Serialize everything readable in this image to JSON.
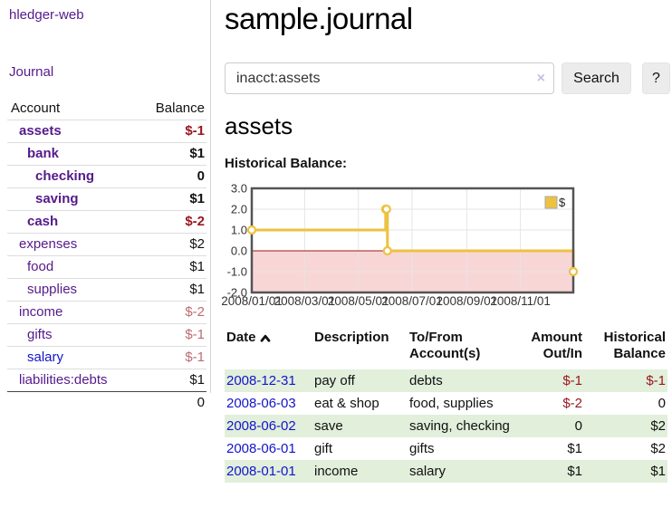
{
  "app": {
    "brand": "hledger-web",
    "nav_journal": "Journal"
  },
  "colors": {
    "link-purple": "#551a8b",
    "link-blue": "#1414cc",
    "neg-strong": "#9d1620",
    "neg-muted": "#bd6b74",
    "row-green": "#e1efdb"
  },
  "sidebar": {
    "header": {
      "account": "Account",
      "balance": "Balance"
    },
    "accounts": [
      {
        "name": "assets",
        "depth": 1,
        "bold": true,
        "balance": "$-1",
        "balance_style": "neg-strong",
        "link_style": "purple"
      },
      {
        "name": "bank",
        "depth": 2,
        "bold": true,
        "balance": "$1",
        "balance_style": "",
        "link_style": "purple"
      },
      {
        "name": "checking",
        "depth": 3,
        "bold": true,
        "balance": "0",
        "balance_style": "",
        "link_style": "purple"
      },
      {
        "name": "saving",
        "depth": 3,
        "bold": true,
        "balance": "$1",
        "balance_style": "",
        "link_style": "purple"
      },
      {
        "name": "cash",
        "depth": 2,
        "bold": true,
        "balance": "$-2",
        "balance_style": "neg-strong",
        "link_style": "purple"
      },
      {
        "name": "expenses",
        "depth": 1,
        "bold": false,
        "balance": "$2",
        "balance_style": "",
        "link_style": "purple"
      },
      {
        "name": "food",
        "depth": 2,
        "bold": false,
        "balance": "$1",
        "balance_style": "",
        "link_style": "purple"
      },
      {
        "name": "supplies",
        "depth": 2,
        "bold": false,
        "balance": "$1",
        "balance_style": "",
        "link_style": "purple"
      },
      {
        "name": "income",
        "depth": 1,
        "bold": false,
        "balance": "$-2",
        "balance_style": "neg-muted",
        "link_style": "purple"
      },
      {
        "name": "gifts",
        "depth": 2,
        "bold": false,
        "balance": "$-1",
        "balance_style": "neg-muted",
        "link_style": "purple"
      },
      {
        "name": "salary",
        "depth": 2,
        "bold": false,
        "balance": "$-1",
        "balance_style": "neg-muted",
        "link_style": "blue"
      },
      {
        "name": "liabilities:debts",
        "depth": 1,
        "bold": false,
        "balance": "$1",
        "balance_style": "",
        "link_style": "purple",
        "last": true
      }
    ],
    "total": "0"
  },
  "header": {
    "title": "sample.journal"
  },
  "search": {
    "value": "inacct:assets",
    "clear_icon": "×",
    "button": "Search",
    "help_button": "?"
  },
  "account_page": {
    "heading": "assets",
    "chart_label": "Historical Balance:"
  },
  "chart_data": {
    "type": "line",
    "step": true,
    "title": "Historical Balance",
    "legend": "$",
    "legend_position": "top-right",
    "grid": true,
    "x_range": [
      "2008-01-01",
      "2008-12-31"
    ],
    "ylim": [
      -2,
      3
    ],
    "series": [
      {
        "name": "$",
        "color": "#edc240",
        "points": [
          [
            "2008-01-01",
            1
          ],
          [
            "2008-06-01",
            2
          ],
          [
            "2008-06-02",
            2
          ],
          [
            "2008-06-03",
            0
          ],
          [
            "2008-12-31",
            -1
          ]
        ]
      }
    ],
    "y_ticks": [
      {
        "v": 3,
        "label": "3.0"
      },
      {
        "v": 2,
        "label": "2.0"
      },
      {
        "v": 1,
        "label": "1.0"
      },
      {
        "v": 0,
        "label": "0.0"
      },
      {
        "v": -1,
        "label": "-1.0"
      },
      {
        "v": -2,
        "label": "-2.0"
      }
    ],
    "x_ticks": [
      {
        "d": "2008-01-01",
        "label": "2008/01/01"
      },
      {
        "d": "2008-03-01",
        "label": "2008/03/01"
      },
      {
        "d": "2008-05-01",
        "label": "2008/05/01"
      },
      {
        "d": "2008-07-01",
        "label": "2008/07/01"
      },
      {
        "d": "2008-09-01",
        "label": "2008/09/01"
      },
      {
        "d": "2008-11-01",
        "label": "2008/11/01"
      }
    ],
    "negative_region_color": "#f9d6d6",
    "zero_line_color": "#9c1a1a",
    "grid_color": "#e5e5e5",
    "border_color": "#545454",
    "marker_fill": "#ffffff"
  },
  "register": {
    "columns": [
      "Date",
      "Description",
      "To/From Account(s)",
      "Amount Out/In",
      "Historical Balance"
    ],
    "rows": [
      {
        "date": "2008-12-31",
        "description": "pay off",
        "accounts": "debts",
        "amount": "$-1",
        "amount_style": "neg",
        "balance": "$-1",
        "balance_style": "neg"
      },
      {
        "date": "2008-06-03",
        "description": "eat & shop",
        "accounts": "food, supplies",
        "amount": "$-2",
        "amount_style": "neg",
        "balance": "0",
        "balance_style": ""
      },
      {
        "date": "2008-06-02",
        "description": "save",
        "accounts": "saving, checking",
        "amount": "0",
        "amount_style": "",
        "balance": "$2",
        "balance_style": ""
      },
      {
        "date": "2008-06-01",
        "description": "gift",
        "accounts": "gifts",
        "amount": "$1",
        "amount_style": "",
        "balance": "$2",
        "balance_style": ""
      },
      {
        "date": "2008-01-01",
        "description": "income",
        "accounts": "salary",
        "amount": "$1",
        "amount_style": "",
        "balance": "$1",
        "balance_style": ""
      }
    ]
  }
}
